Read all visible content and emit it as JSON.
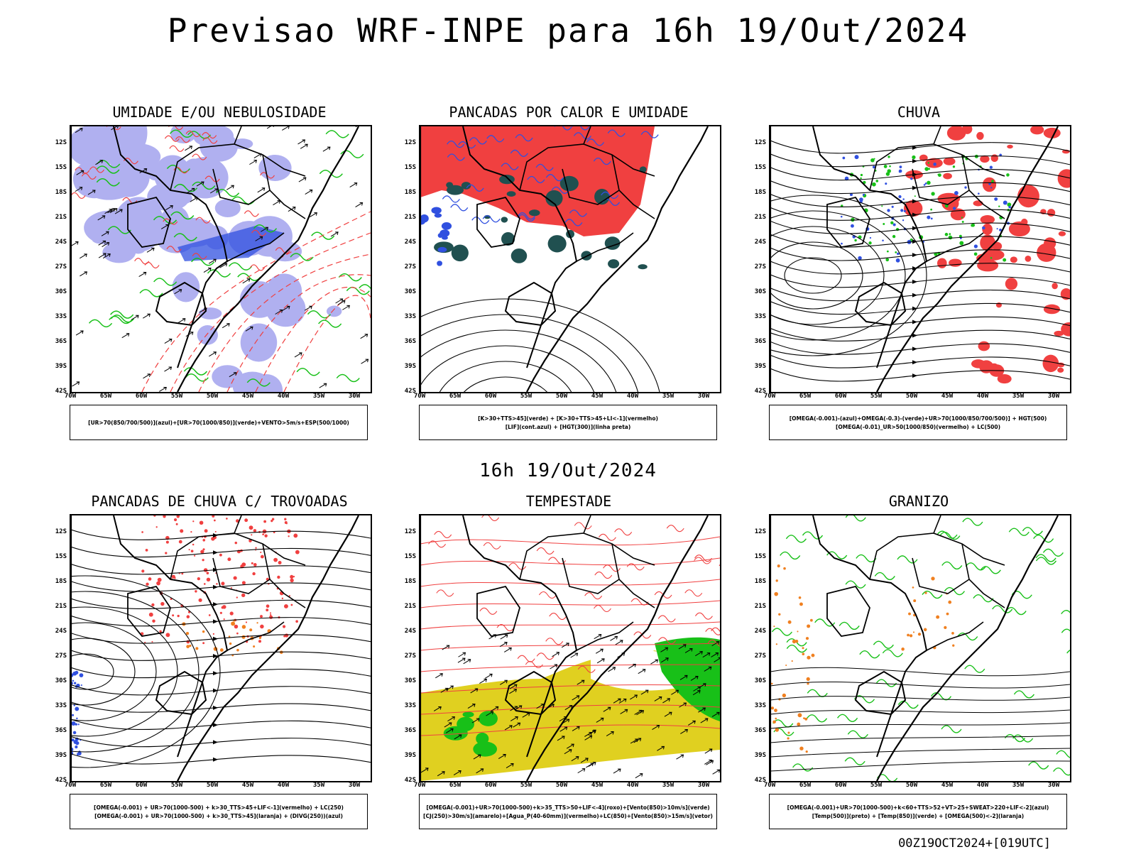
{
  "title": "Previsao WRF-INPE  para 16h 19/Out/2024",
  "mid_date": "16h 19/Out/2024",
  "footer": "00Z19OCT2024+[019UTC]",
  "axes": {
    "lat_labels": [
      "12S",
      "15S",
      "18S",
      "21S",
      "24S",
      "27S",
      "30S",
      "33S",
      "36S",
      "39S",
      "42S"
    ],
    "lon_labels": [
      "70W",
      "65W",
      "60W",
      "55W",
      "50W",
      "45W",
      "40W",
      "35W",
      "30W"
    ]
  },
  "colors": {
    "blue": "#3050e0",
    "green": "#18c018",
    "red": "#f04040",
    "yellow": "#e0d020",
    "orange": "#f08020",
    "darkteal": "#205050",
    "lavender": "#b0b0f0"
  },
  "panels": [
    {
      "title": "UMIDADE E/OU NEBULOSIDADE",
      "legend": [
        "[UR>70(850/700/500)](azul)+[UR>70(1000/850)](verde)+VENTO>5m/s+ESP(500/1000)"
      ]
    },
    {
      "title": "PANCADAS POR CALOR E UMIDADE",
      "legend": [
        "[K>30+TTS>45](verde)  +  [K>30+TTS>45+LI<-1](vermelho)",
        "[LIF](cont.azul)  +  [HGT(300)](linha preta)"
      ]
    },
    {
      "title": "CHUVA",
      "legend": [
        "[OMEGA(-0.001)-(azul)+OMEGA(-0.3)-(verde)+UR>70(1000/850/700/500)]  +  HGT(500)",
        "[OMEGA(-0.01)_UR>50(1000/850)(vermelho)  +  LC(500)"
      ]
    },
    {
      "title": "PANCADAS DE CHUVA C/ TROVOADAS",
      "legend": [
        "[OMEGA(-0.001)  +  UR>70(1000-500)  +  k>30_TTS>45+LIF<-1](vermelho)  +  LC(250)",
        "[OMEGA(-0.001)  +  UR>70(1000-500)  +  k>30_TTS>45](laranja)  +  (DIVG(250))(azul)"
      ]
    },
    {
      "title": "TEMPESTADE",
      "legend": [
        "[OMEGA(-0.001)+UR>70(1000-500)+k>35_TTS>50+LIF<-4](roxo)+[Vento(850)>10m/s](verde)",
        "[CJ(250)>30m/s](amarelo)+[Agua_P(40-60mm)](vermelho)+LC(850)+[Vento(850)>15m/s](vetor)"
      ]
    },
    {
      "title": "GRANIZO",
      "legend": [
        "[OMEGA(-0.001)+UR>70(1000-500)+k<60+TTS>52+VT>25+SWEAT>220+LIF<-2](azul)",
        "[Temp(500)](preto)  +  [Temp(850)](verde)  +  [OMEGA(500)<-2](laranja)"
      ]
    }
  ]
}
